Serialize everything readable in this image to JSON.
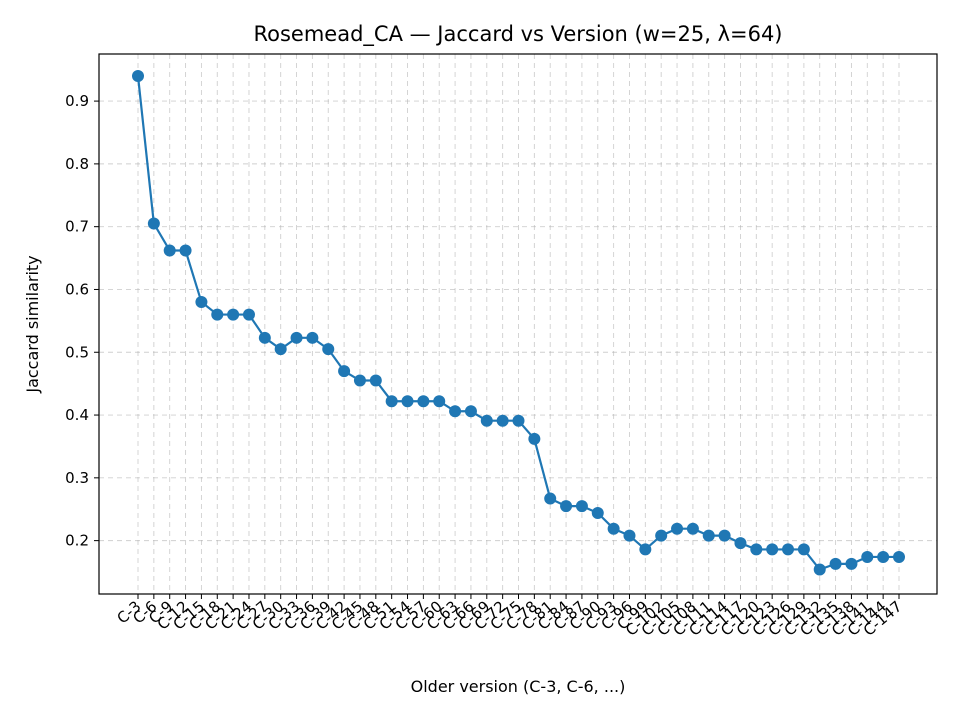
{
  "chart_data": {
    "type": "line",
    "title": "Rosemead_CA — Jaccard vs Version (w=25, λ=64)",
    "xlabel": "Older version (C-3, C-6, ...)",
    "ylabel": "Jaccard similarity",
    "ylim": [
      0.115,
      0.975
    ],
    "yticks": [
      0.2,
      0.3,
      0.4,
      0.5,
      0.6,
      0.7,
      0.8,
      0.9
    ],
    "grid": true,
    "color": "#1f77b4",
    "categories": [
      "C-3",
      "C-6",
      "C-9",
      "C-12",
      "C-15",
      "C-18",
      "C-21",
      "C-24",
      "C-27",
      "C-30",
      "C-33",
      "C-36",
      "C-39",
      "C-42",
      "C-45",
      "C-48",
      "C-51",
      "C-54",
      "C-57",
      "C-60",
      "C-63",
      "C-66",
      "C-69",
      "C-72",
      "C-75",
      "C-78",
      "C-81",
      "C-84",
      "C-87",
      "C-90",
      "C-93",
      "C-96",
      "C-99",
      "C-102",
      "C-105",
      "C-108",
      "C-111",
      "C-114",
      "C-117",
      "C-120",
      "C-123",
      "C-126",
      "C-129",
      "C-132",
      "C-135",
      "C-138",
      "C-141",
      "C-144",
      "C-147"
    ],
    "values": [
      0.94,
      0.705,
      0.662,
      0.662,
      0.58,
      0.56,
      0.56,
      0.56,
      0.523,
      0.505,
      0.523,
      0.523,
      0.505,
      0.47,
      0.455,
      0.455,
      0.422,
      0.422,
      0.422,
      0.422,
      0.406,
      0.406,
      0.391,
      0.391,
      0.391,
      0.362,
      0.267,
      0.255,
      0.255,
      0.244,
      0.219,
      0.208,
      0.186,
      0.208,
      0.219,
      0.219,
      0.208,
      0.208,
      0.196,
      0.186,
      0.186,
      0.186,
      0.186,
      0.154,
      0.163,
      0.163,
      0.174,
      0.174,
      0.174
    ]
  }
}
